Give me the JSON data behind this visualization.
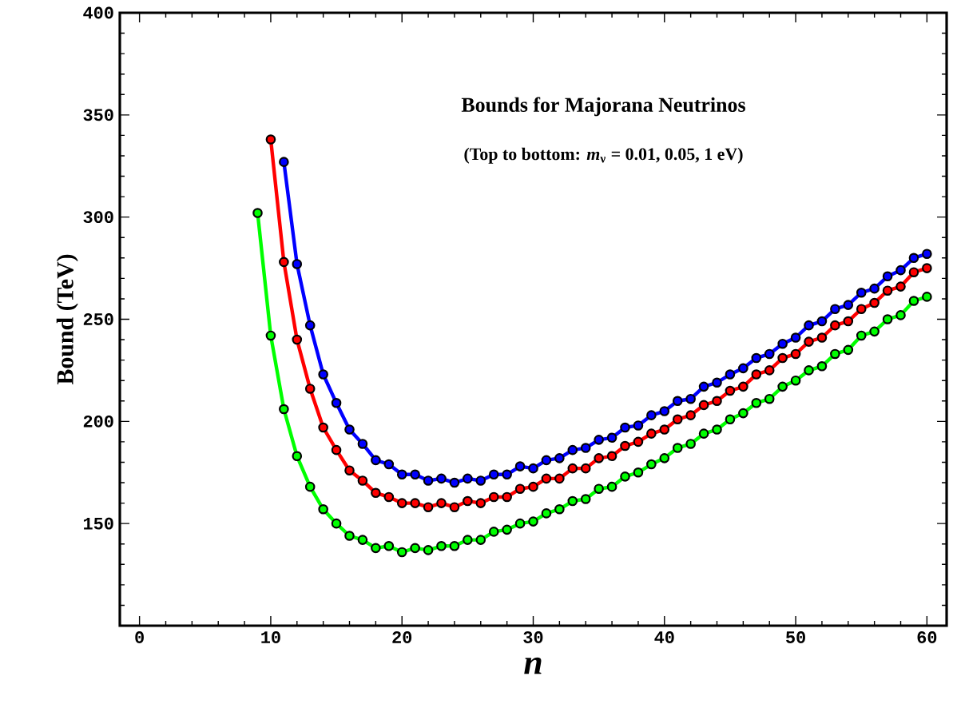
{
  "chart_data": {
    "type": "line",
    "title": "Bounds for Majorana Neutrinos",
    "subtitle": "(Top to bottom: *m*$_{ν}$ = 0.01, 0.05, 1 eV)",
    "xlabel": "n",
    "ylabel": "Bound (TeV)",
    "xlim": [
      -1.5,
      61.5
    ],
    "ylim": [
      100,
      400
    ],
    "xticks": [
      0,
      10,
      20,
      30,
      40,
      50,
      60
    ],
    "yticks": [
      {
        "value": 100,
        "label": null
      },
      150,
      200,
      250,
      300,
      350,
      400
    ],
    "marker": "circle",
    "line_style": "solid",
    "series": [
      {
        "color": "#0000ff",
        "x": [
          11,
          12,
          13,
          14,
          15,
          16,
          17,
          18,
          19,
          20,
          21,
          22,
          23,
          24,
          25,
          26,
          27,
          28,
          29,
          30,
          31,
          32,
          33,
          34,
          35,
          36,
          37,
          38,
          39,
          40,
          41,
          42,
          43,
          44,
          45,
          46,
          47,
          48,
          49,
          50,
          51,
          52,
          53,
          54,
          55,
          56,
          57,
          58,
          59,
          60
        ],
        "values": [
          327,
          277,
          247,
          223,
          209,
          196,
          189,
          181,
          179,
          174,
          174,
          171,
          172,
          170,
          172,
          171,
          174,
          174,
          178,
          177,
          181,
          182,
          186,
          187,
          191,
          192,
          197,
          198,
          203,
          205,
          210,
          211,
          217,
          219,
          223,
          226,
          231,
          233,
          238,
          241,
          247,
          249,
          255,
          257,
          263,
          265,
          271,
          274,
          280,
          282
        ]
      },
      {
        "color": "#ff0000",
        "x": [
          10,
          11,
          12,
          13,
          14,
          15,
          16,
          17,
          18,
          19,
          20,
          21,
          22,
          23,
          24,
          25,
          26,
          27,
          28,
          29,
          30,
          31,
          32,
          33,
          34,
          35,
          36,
          37,
          38,
          39,
          40,
          41,
          42,
          43,
          44,
          45,
          46,
          47,
          48,
          49,
          50,
          51,
          52,
          53,
          54,
          55,
          56,
          57,
          58,
          59,
          60
        ],
        "values": [
          338,
          278,
          240,
          216,
          197,
          186,
          176,
          171,
          165,
          163,
          160,
          160,
          158,
          160,
          158,
          161,
          160,
          163,
          163,
          167,
          168,
          172,
          172,
          177,
          177,
          182,
          183,
          188,
          190,
          194,
          196,
          201,
          203,
          208,
          210,
          215,
          217,
          223,
          225,
          231,
          233,
          239,
          241,
          247,
          249,
          255,
          258,
          264,
          266,
          273,
          275
        ]
      },
      {
        "color": "#00ff00",
        "x": [
          9,
          10,
          11,
          12,
          13,
          14,
          15,
          16,
          17,
          18,
          19,
          20,
          21,
          22,
          23,
          24,
          25,
          26,
          27,
          28,
          29,
          30,
          31,
          32,
          33,
          34,
          35,
          36,
          37,
          38,
          39,
          40,
          41,
          42,
          43,
          44,
          45,
          46,
          47,
          48,
          49,
          50,
          51,
          52,
          53,
          54,
          55,
          56,
          57,
          58,
          59,
          60
        ],
        "values": [
          302,
          242,
          206,
          183,
          168,
          157,
          150,
          144,
          142,
          138,
          139,
          136,
          138,
          137,
          139,
          139,
          142,
          142,
          146,
          147,
          150,
          151,
          155,
          157,
          161,
          162,
          167,
          168,
          173,
          175,
          179,
          182,
          187,
          189,
          194,
          196,
          201,
          204,
          209,
          211,
          217,
          220,
          225,
          227,
          233,
          235,
          242,
          244,
          250,
          252,
          259,
          261
        ]
      }
    ]
  }
}
